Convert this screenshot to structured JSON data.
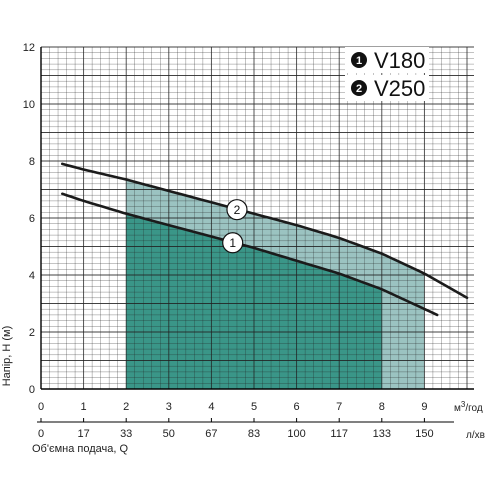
{
  "chart_data": {
    "type": "line",
    "xlabel": "Об'ємна подача, Q",
    "ylabel": "Напір, Н (м)",
    "x_unit_primary": "м³/год",
    "x_unit_primary_base": "м",
    "x_unit_primary_sup": "3",
    "x_unit_primary_rest": "/год",
    "x_unit_secondary": "л/хв",
    "xlim": [
      0,
      10
    ],
    "ylim": [
      0,
      12
    ],
    "grid": true,
    "x_ticks": [
      "0",
      "1",
      "2",
      "3",
      "4",
      "5",
      "6",
      "7",
      "8",
      "9"
    ],
    "x_ticks_secondary": [
      "0",
      "17",
      "33",
      "50",
      "67",
      "83",
      "100",
      "117",
      "133",
      "150"
    ],
    "y_ticks": [
      "0",
      "2",
      "4",
      "6",
      "8",
      "10",
      "12"
    ],
    "legend_position": "top-right",
    "series": [
      {
        "name": "V180",
        "label": "1",
        "x": [
          0.5,
          1,
          2,
          3,
          4,
          5,
          6,
          7,
          8,
          9.3
        ],
        "y": [
          6.85,
          6.6,
          6.15,
          5.75,
          5.35,
          4.95,
          4.5,
          4.05,
          3.5,
          2.6
        ],
        "working_range": [
          2,
          8
        ],
        "fill_color": "#3a9688"
      },
      {
        "name": "V250",
        "label": "2",
        "x": [
          0.5,
          1,
          2,
          3,
          4,
          5,
          6,
          7,
          8,
          9,
          10
        ],
        "y": [
          7.9,
          7.7,
          7.35,
          6.95,
          6.55,
          6.15,
          5.75,
          5.3,
          4.75,
          4.05,
          3.2
        ],
        "working_range": [
          2,
          9
        ],
        "fill_color": "#9bc3c1"
      }
    ],
    "curve_label_positions": [
      {
        "series": 0,
        "x": 4.5,
        "label": "1"
      },
      {
        "series": 1,
        "x": 4.6,
        "label": "2"
      }
    ]
  }
}
